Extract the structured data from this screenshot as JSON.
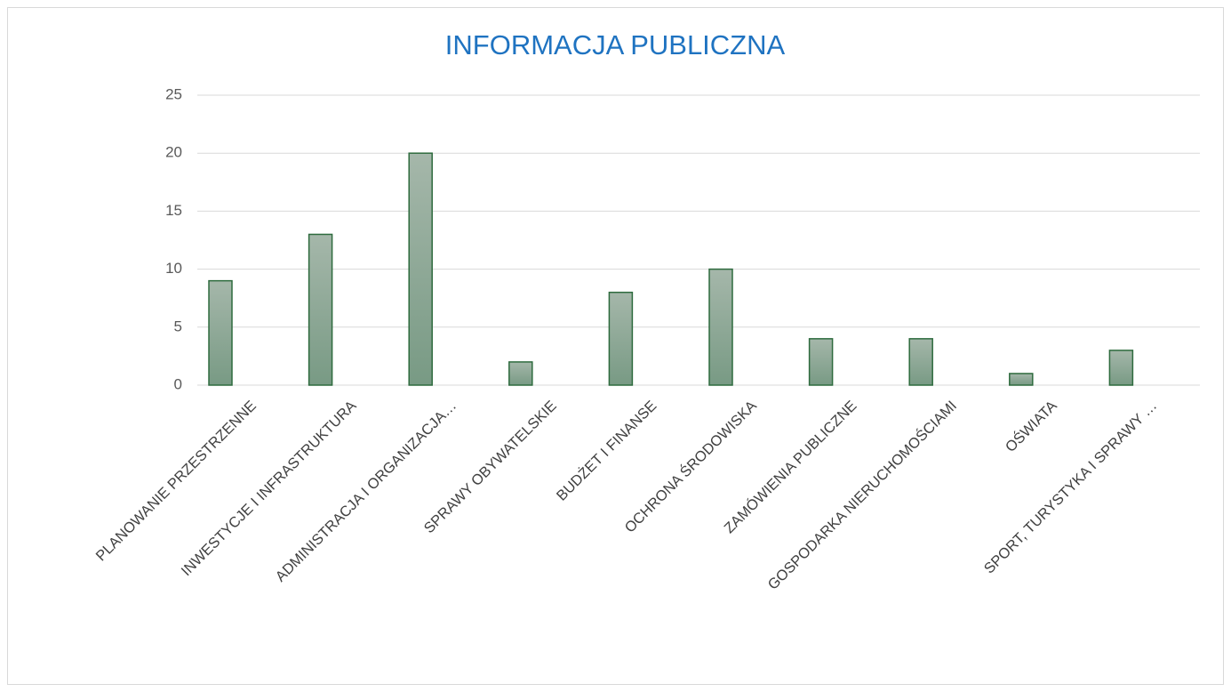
{
  "chart_data": {
    "type": "bar",
    "title": "INFORMACJA PUBLICZNA",
    "categories": [
      "PLANOWANIE PRZESTRZENNE",
      "INWESTYCJE I INFRASTRUKTURA",
      "ADMINISTRACJA I ORGANIZACJA…",
      "SPRAWY OBYWATELSKIE",
      "BUDŻET I FINANSE",
      "OCHRONA ŚRODOWISKA",
      "ZAMÓWIENIA PUBLICZNE",
      "GOSPODARKA NIERUCHOMOŚCIAMI",
      "OŚWIATA",
      "SPORT, TURYSTYKA I SPRAWY …"
    ],
    "values": [
      9,
      13,
      20,
      2,
      8,
      10,
      4,
      4,
      1,
      3
    ],
    "color": "#8aa896",
    "edge_color": "#2e6b3e",
    "ylim": [
      0,
      25
    ],
    "yticks": [
      0,
      5,
      10,
      15,
      20,
      25
    ],
    "grid": true
  }
}
